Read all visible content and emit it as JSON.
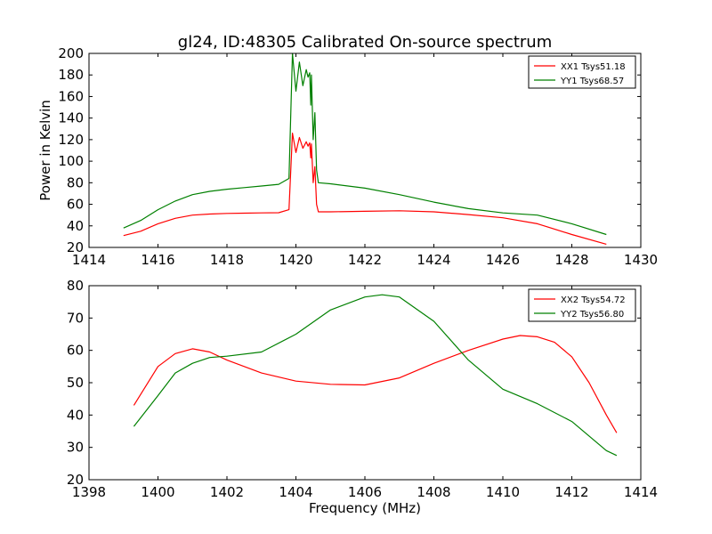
{
  "title": "gl24, ID:48305 Calibrated On-source spectrum",
  "chart_data": [
    {
      "type": "line",
      "xlim": [
        1414,
        1430
      ],
      "ylim": [
        20,
        200
      ],
      "xticks": [
        1414,
        1416,
        1418,
        1420,
        1422,
        1424,
        1426,
        1428,
        1430
      ],
      "yticks": [
        20,
        40,
        60,
        80,
        100,
        120,
        140,
        160,
        180,
        200
      ],
      "xlabel": "",
      "ylabel": "Power in Kelvin",
      "grid": false,
      "legend_position": "top-right",
      "series": [
        {
          "name": "XX1 Tsys51.18",
          "color": "#ff0000",
          "points": [
            [
              1415,
              31
            ],
            [
              1415.5,
              35
            ],
            [
              1416,
              42
            ],
            [
              1416.5,
              47
            ],
            [
              1417,
              50
            ],
            [
              1417.5,
              51
            ],
            [
              1418,
              51.5
            ],
            [
              1418.5,
              51.8
            ],
            [
              1419,
              52
            ],
            [
              1419.5,
              52.2
            ],
            [
              1419.8,
              55
            ],
            [
              1419.9,
              126
            ],
            [
              1420.0,
              108
            ],
            [
              1420.1,
              122
            ],
            [
              1420.2,
              112
            ],
            [
              1420.3,
              118
            ],
            [
              1420.35,
              114
            ],
            [
              1420.4,
              117
            ],
            [
              1420.43,
              103
            ],
            [
              1420.45,
              116
            ],
            [
              1420.5,
              80
            ],
            [
              1420.55,
              95
            ],
            [
              1420.6,
              60
            ],
            [
              1420.65,
              53
            ],
            [
              1421,
              53
            ],
            [
              1422,
              53.5
            ],
            [
              1423,
              54
            ],
            [
              1424,
              53
            ],
            [
              1425,
              50.5
            ],
            [
              1426,
              47.5
            ],
            [
              1427,
              42
            ],
            [
              1428,
              32
            ],
            [
              1429,
              23
            ]
          ]
        },
        {
          "name": "YY1 Tsys68.57",
          "color": "#008000",
          "points": [
            [
              1415,
              38
            ],
            [
              1415.5,
              45
            ],
            [
              1416,
              55
            ],
            [
              1416.5,
              63
            ],
            [
              1417,
              69
            ],
            [
              1417.5,
              72
            ],
            [
              1418,
              74
            ],
            [
              1418.5,
              75.5
            ],
            [
              1419,
              77
            ],
            [
              1419.5,
              78.5
            ],
            [
              1419.8,
              84
            ],
            [
              1419.9,
              200
            ],
            [
              1420.0,
              165
            ],
            [
              1420.1,
              192
            ],
            [
              1420.2,
              170
            ],
            [
              1420.3,
              185
            ],
            [
              1420.35,
              178
            ],
            [
              1420.4,
              182
            ],
            [
              1420.43,
              152
            ],
            [
              1420.45,
              180
            ],
            [
              1420.5,
              120
            ],
            [
              1420.55,
              145
            ],
            [
              1420.6,
              92
            ],
            [
              1420.65,
              80
            ],
            [
              1421,
              79
            ],
            [
              1422,
              75
            ],
            [
              1423,
              69
            ],
            [
              1424,
              62
            ],
            [
              1425,
              56
            ],
            [
              1426,
              52
            ],
            [
              1427,
              50
            ],
            [
              1428,
              42
            ],
            [
              1429,
              32
            ]
          ]
        }
      ]
    },
    {
      "type": "line",
      "xlim": [
        1398,
        1414
      ],
      "ylim": [
        20,
        80
      ],
      "xticks": [
        1398,
        1400,
        1402,
        1404,
        1406,
        1408,
        1410,
        1412,
        1414
      ],
      "yticks": [
        20,
        30,
        40,
        50,
        60,
        70,
        80
      ],
      "xlabel": "Frequency (MHz)",
      "ylabel": "",
      "grid": false,
      "legend_position": "top-right",
      "series": [
        {
          "name": "XX2 Tsys54.72",
          "color": "#ff0000",
          "points": [
            [
              1399.3,
              43
            ],
            [
              1400,
              55
            ],
            [
              1400.5,
              59
            ],
            [
              1401,
              60.5
            ],
            [
              1401.5,
              59.5
            ],
            [
              1402,
              57
            ],
            [
              1403,
              53
            ],
            [
              1404,
              50.5
            ],
            [
              1405,
              49.5
            ],
            [
              1406,
              49.3
            ],
            [
              1407,
              51.5
            ],
            [
              1408,
              56
            ],
            [
              1409,
              60
            ],
            [
              1410,
              63.5
            ],
            [
              1410.5,
              64.6
            ],
            [
              1411,
              64.2
            ],
            [
              1411.5,
              62.5
            ],
            [
              1412,
              58
            ],
            [
              1412.5,
              50
            ],
            [
              1413,
              40
            ],
            [
              1413.3,
              34.5
            ]
          ]
        },
        {
          "name": "YY2 Tsys56.80",
          "color": "#008000",
          "points": [
            [
              1399.3,
              36.5
            ],
            [
              1400,
              46
            ],
            [
              1400.5,
              53
            ],
            [
              1401,
              56
            ],
            [
              1401.5,
              57.8
            ],
            [
              1402,
              58.2
            ],
            [
              1403,
              59.5
            ],
            [
              1404,
              65
            ],
            [
              1405,
              72.5
            ],
            [
              1406,
              76.5
            ],
            [
              1406.5,
              77.2
            ],
            [
              1407,
              76.5
            ],
            [
              1408,
              69
            ],
            [
              1409,
              57
            ],
            [
              1410,
              48
            ],
            [
              1411,
              43.5
            ],
            [
              1412,
              38
            ],
            [
              1412.5,
              33.5
            ],
            [
              1413,
              29
            ],
            [
              1413.3,
              27.5
            ]
          ]
        }
      ]
    }
  ]
}
